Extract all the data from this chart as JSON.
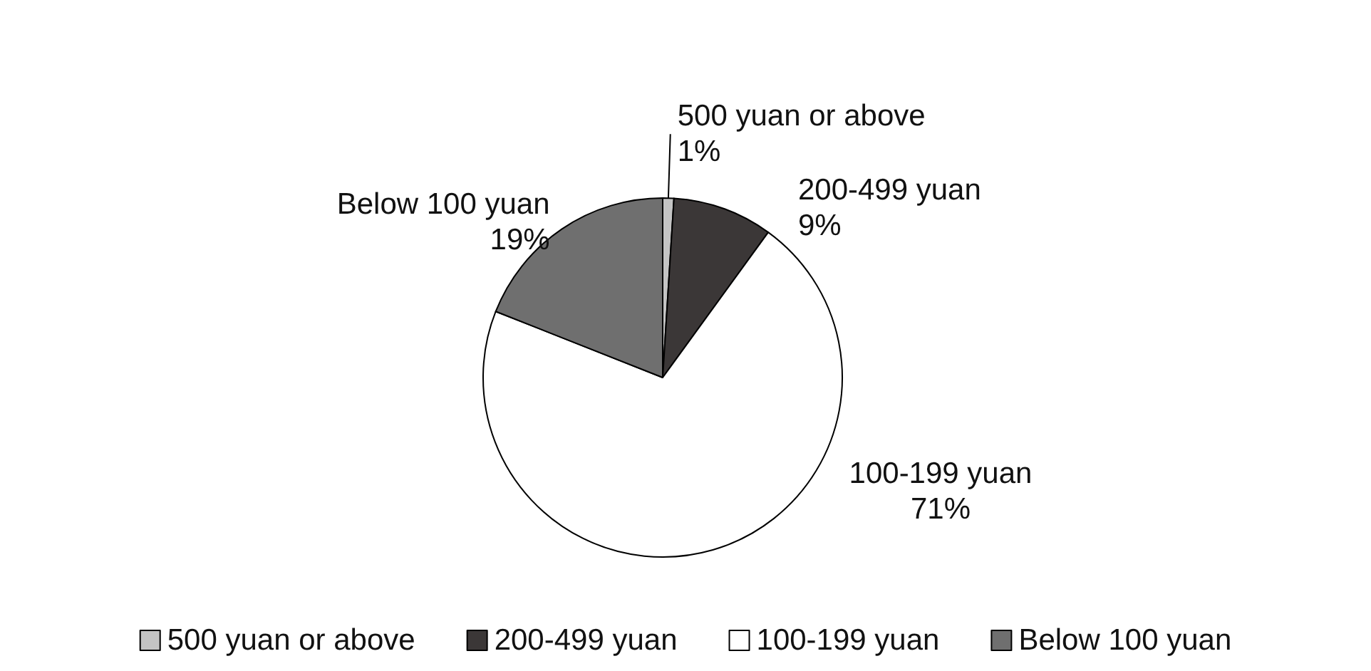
{
  "chart_data": {
    "type": "pie",
    "categories": [
      "500 yuan or above",
      "200-499 yuan",
      "100-199 yuan",
      "Below 100 yuan"
    ],
    "values": [
      1,
      9,
      71,
      19
    ],
    "value_labels": [
      "1%",
      "9%",
      "71%",
      "19%"
    ],
    "colors": [
      "#c4c4c4",
      "#3b3737",
      "#ffffff",
      "#6f6f6f"
    ],
    "legend": "bottom"
  }
}
